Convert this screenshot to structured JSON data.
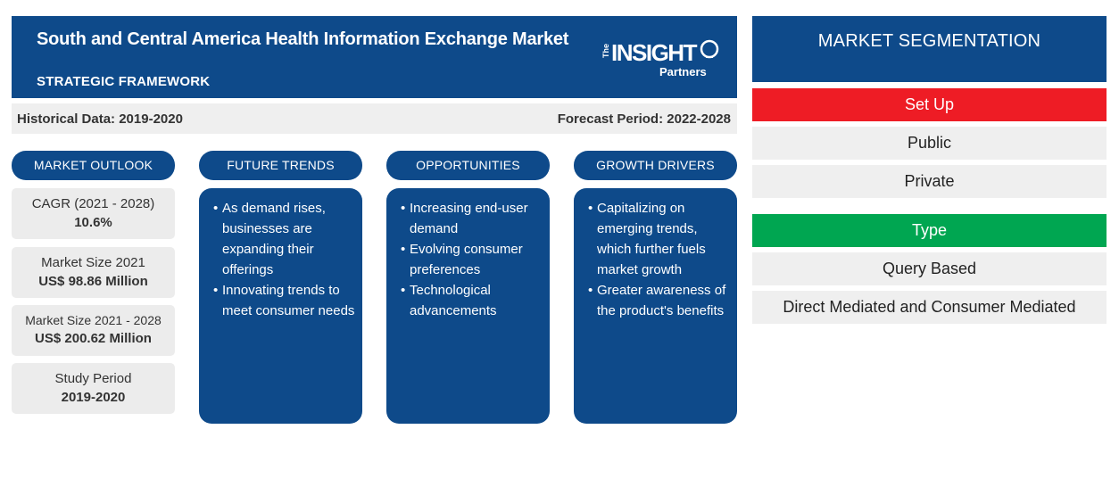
{
  "header": {
    "title": "South and Central America Health Information Exchange Market",
    "subtitle": "STRATEGIC FRAMEWORK",
    "logo": {
      "the": "The",
      "insight": "INSIGHT",
      "partners": "Partners"
    }
  },
  "periods": {
    "historical": "Historical Data: 2019-2020",
    "forecast": "Forecast Period: 2022-2028"
  },
  "market_outlook": {
    "heading": "MARKET OUTLOOK",
    "stats": [
      {
        "label": "CAGR (2021 - 2028)",
        "value": "10.6%"
      },
      {
        "label": "Market Size 2021",
        "value": "US$ 98.86 Million"
      },
      {
        "label": "Market Size 2021 - 2028",
        "value": "US$ 200.62 Million"
      },
      {
        "label": "Study Period",
        "value": "2019-2020"
      }
    ]
  },
  "future_trends": {
    "heading": "FUTURE TRENDS",
    "items": [
      "As demand rises, businesses are expanding their offerings",
      "Innovating trends to meet consumer needs"
    ]
  },
  "opportunities": {
    "heading": "OPPORTUNITIES",
    "items": [
      "Increasing end-user demand",
      "Evolving consumer preferences",
      "Technological advancements"
    ]
  },
  "growth_drivers": {
    "heading": "GROWTH DRIVERS",
    "items": [
      "Capitalizing on emerging trends, which further fuels market growth",
      "Greater awareness of the product's benefits"
    ]
  },
  "segmentation": {
    "title": "MARKET SEGMENTATION",
    "groups": [
      {
        "category": "Set Up",
        "color": "#ee1c25",
        "items": [
          "Public",
          "Private"
        ]
      },
      {
        "category": "Type",
        "color": "#00a651",
        "items": [
          "Query Based",
          "Direct Mediated and Consumer Mediated"
        ]
      }
    ]
  },
  "colors": {
    "primary": "#0e4a8a",
    "panel": "#efefef"
  }
}
